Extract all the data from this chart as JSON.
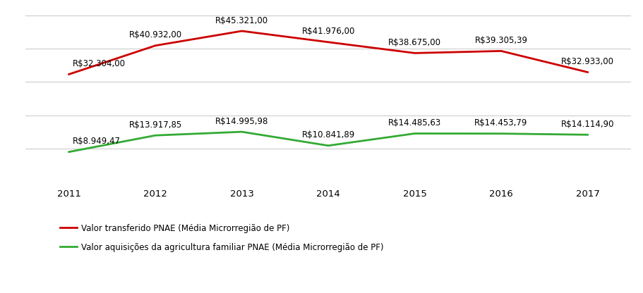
{
  "years": [
    2011,
    2012,
    2013,
    2014,
    2015,
    2016,
    2017
  ],
  "red_values": [
    32304.0,
    40932.0,
    45321.0,
    41976.0,
    38675.0,
    39305.39,
    32933.0
  ],
  "green_values": [
    8949.47,
    13917.85,
    14995.98,
    10841.89,
    14485.63,
    14453.79,
    14114.9
  ],
  "red_labels": [
    "R$32.304,00",
    "R$40.932,00",
    "R$45.321,00",
    "R$41.976,00",
    "R$38.675,00",
    "R$39.305,39",
    "R$32.933,00"
  ],
  "green_labels": [
    "R$8.949,47",
    "R$13.917,85",
    "R$14.995,98",
    "R$10.841,89",
    "R$14.485,63",
    "R$14.453,79",
    "R$14.114,90"
  ],
  "red_color": "#cc0000",
  "green_color": "#33aa33",
  "legend_red": "Valor transferido PNAE (Média Microrregião de PF)",
  "legend_green": "Valor aquisições da agricultura familiar PNAE (Média Microrregião de PF)",
  "background_color": "#ffffff",
  "grid_color": "#cccccc",
  "label_fontsize": 8.5,
  "legend_fontsize": 8.5,
  "tick_fontsize": 9.5,
  "ylim": [
    0,
    52000
  ],
  "xlim": [
    2010.5,
    2017.5
  ],
  "grid_lines": [
    10000,
    20000,
    30000,
    40000,
    50000
  ]
}
